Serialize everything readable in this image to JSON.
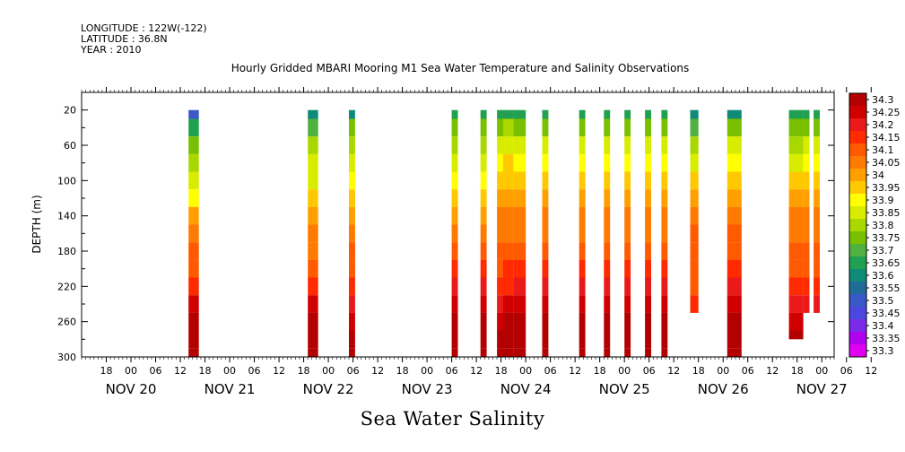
{
  "header": {
    "longitude": "LONGITUDE : 122W(-122)",
    "latitude": "LATITUDE : 36.8N",
    "year": "YEAR : 2010"
  },
  "chart_data": {
    "type": "heatmap",
    "title": "Hourly Gridded MBARI Mooring M1 Sea Water Temperature and Salinity Observations",
    "xlabel": "Sea Water Salinity",
    "ylabel": "DEPTH (m)",
    "xlim_hours": [
      0,
      183
    ],
    "xlim_label": [
      "NOV 20 12:00",
      "NOV 27 21:00"
    ],
    "ylim": [
      0,
      300
    ],
    "y_ticks": [
      20,
      60,
      100,
      140,
      180,
      220,
      260,
      300
    ],
    "day_labels": [
      "NOV 20",
      "NOV 21",
      "NOV 22",
      "NOV 23",
      "NOV 24",
      "NOV 25",
      "NOV 26",
      "NOV 27"
    ],
    "hour_ticks": [
      "18",
      "00",
      "06",
      "12",
      "18",
      "00",
      "06",
      "12",
      "18",
      "00",
      "06",
      "12",
      "18",
      "00",
      "06",
      "12",
      "18",
      "00",
      "06",
      "12",
      "18",
      "00",
      "06",
      "12",
      "18",
      "00",
      "06",
      "12",
      "18",
      "00",
      "06",
      "12"
    ],
    "colorbar_levels": [
      "34.3",
      "34.25",
      "34.2",
      "34.15",
      "34.1",
      "34.05",
      "34",
      "33.95",
      "33.9",
      "33.85",
      "33.8",
      "33.75",
      "33.7",
      "33.65",
      "33.6",
      "33.55",
      "33.5",
      "33.45",
      "33.4",
      "33.35",
      "33.3"
    ],
    "colorbar_colors": [
      "#b30000",
      "#d00000",
      "#ea1a1a",
      "#ff2a00",
      "#ff5a00",
      "#ff7a00",
      "#ffa000",
      "#ffc800",
      "#ffff00",
      "#d8ec00",
      "#a8d800",
      "#78c000",
      "#50b040",
      "#20a050",
      "#108a78",
      "#206b9a",
      "#3a58c8",
      "#4a48e0",
      "#7a2ae8",
      "#b000ee",
      "#e000f0"
    ],
    "profile_depths": [
      20,
      40,
      60,
      80,
      100,
      120,
      140,
      160,
      180,
      200,
      220,
      240,
      260,
      280,
      300
    ],
    "profiles": [
      {
        "t0": 26,
        "t1": 28.5,
        "values": [
          33.45,
          33.62,
          33.72,
          33.76,
          33.8,
          33.88,
          33.95,
          34.02,
          34.05,
          34.08,
          34.14,
          34.2,
          34.25,
          34.27,
          34.28
        ]
      },
      {
        "t0": 55,
        "t1": 57.5,
        "values": [
          33.55,
          33.68,
          33.76,
          33.8,
          33.84,
          33.9,
          33.95,
          34.0,
          34.03,
          34.06,
          34.12,
          34.2,
          34.25,
          34.27,
          34.28
        ]
      },
      {
        "t0": 65,
        "t1": 66.5,
        "values": [
          33.58,
          33.7,
          33.78,
          33.82,
          33.86,
          33.9,
          33.96,
          34.02,
          34.05,
          34.08,
          34.12,
          34.18,
          34.24,
          34.26,
          34.27
        ]
      },
      {
        "t0": 90,
        "t1": 91.5,
        "values": [
          33.62,
          33.72,
          33.78,
          33.84,
          33.88,
          33.92,
          33.97,
          34.02,
          34.06,
          34.1,
          34.15,
          34.2,
          34.25,
          34.26,
          34.27
        ]
      },
      {
        "t0": 97,
        "t1": 98.5,
        "values": [
          33.6,
          33.7,
          33.78,
          33.84,
          33.88,
          33.92,
          33.97,
          34.02,
          34.06,
          34.1,
          34.15,
          34.22,
          34.27,
          34.28,
          34.28
        ]
      },
      {
        "t0": 101,
        "t1": 102.5,
        "values": [
          33.62,
          33.74,
          33.82,
          33.88,
          33.92,
          33.96,
          34.0,
          34.03,
          34.05,
          34.08,
          34.12,
          34.18,
          34.24,
          34.26,
          34.27
        ]
      },
      {
        "t0": 102.5,
        "t1": 105,
        "values": [
          33.64,
          33.76,
          33.84,
          33.9,
          33.94,
          33.98,
          34.02,
          34.04,
          34.06,
          34.1,
          34.14,
          34.2,
          34.26,
          34.27,
          34.27
        ]
      },
      {
        "t0": 105,
        "t1": 108,
        "values": [
          33.6,
          33.72,
          33.8,
          33.86,
          33.9,
          33.96,
          34.0,
          34.04,
          34.06,
          34.1,
          34.15,
          34.22,
          34.26,
          34.27,
          34.28
        ]
      },
      {
        "t0": 112,
        "t1": 113.5,
        "values": [
          33.62,
          33.74,
          33.8,
          33.86,
          33.9,
          33.95,
          34.0,
          34.04,
          34.06,
          34.1,
          34.15,
          34.2,
          34.25,
          34.26,
          34.27
        ]
      },
      {
        "t0": 121,
        "t1": 122.5,
        "values": [
          33.62,
          33.72,
          33.8,
          33.86,
          33.9,
          33.95,
          34.0,
          34.04,
          34.06,
          34.1,
          34.15,
          34.2,
          34.25,
          34.26,
          34.27
        ]
      },
      {
        "t0": 127,
        "t1": 128.5,
        "values": [
          33.62,
          33.72,
          33.8,
          33.86,
          33.9,
          33.95,
          34.0,
          34.04,
          34.06,
          34.1,
          34.15,
          34.2,
          34.25,
          34.26,
          34.27
        ]
      },
      {
        "t0": 132,
        "t1": 133.5,
        "values": [
          33.62,
          33.72,
          33.8,
          33.86,
          33.9,
          33.95,
          34.0,
          34.04,
          34.06,
          34.1,
          34.15,
          34.2,
          34.25,
          34.26,
          34.27
        ]
      },
      {
        "t0": 137,
        "t1": 138.5,
        "values": [
          33.62,
          33.72,
          33.8,
          33.86,
          33.9,
          33.95,
          34.0,
          34.04,
          34.06,
          34.1,
          34.15,
          34.2,
          34.25,
          34.26,
          34.27
        ]
      },
      {
        "t0": 141,
        "t1": 142.5,
        "values": [
          33.62,
          33.72,
          33.8,
          33.86,
          33.9,
          33.95,
          34.0,
          34.04,
          34.06,
          34.1,
          34.15,
          34.2,
          34.25,
          34.26,
          34.27
        ]
      },
      {
        "t0": 148,
        "t1": 150,
        "values": [
          33.58,
          33.68,
          33.78,
          33.84,
          33.9,
          33.96,
          34.02,
          34.06,
          34.08,
          34.08,
          34.08,
          34.1,
          34.15
        ],
        "maxDepth": 250
      },
      {
        "t0": 157,
        "t1": 160.5,
        "values": [
          33.55,
          33.7,
          33.8,
          33.88,
          33.94,
          33.98,
          34.02,
          34.05,
          34.08,
          34.12,
          34.18,
          34.24,
          34.28,
          34.28,
          34.28
        ]
      },
      {
        "t0": 172,
        "t1": 175.5,
        "values": [
          33.6,
          33.7,
          33.78,
          33.84,
          33.9,
          33.95,
          34.0,
          34.04,
          34.06,
          34.08,
          34.12,
          34.16,
          34.22,
          34.25
        ],
        "maxDepth": 280
      },
      {
        "t0": 175.5,
        "t1": 177,
        "values": [
          33.62,
          33.72,
          33.8,
          33.86,
          33.9,
          33.95,
          34.0,
          34.04,
          34.06,
          34.08,
          34.12,
          34.16,
          34.2
        ],
        "maxDepth": 250
      },
      {
        "t0": 178,
        "t1": 179.5,
        "values": [
          33.62,
          33.72,
          33.8,
          33.86,
          33.9,
          33.95,
          34.0,
          34.04,
          34.06,
          34.08,
          34.12,
          34.16,
          34.2
        ],
        "maxDepth": 250
      }
    ]
  }
}
